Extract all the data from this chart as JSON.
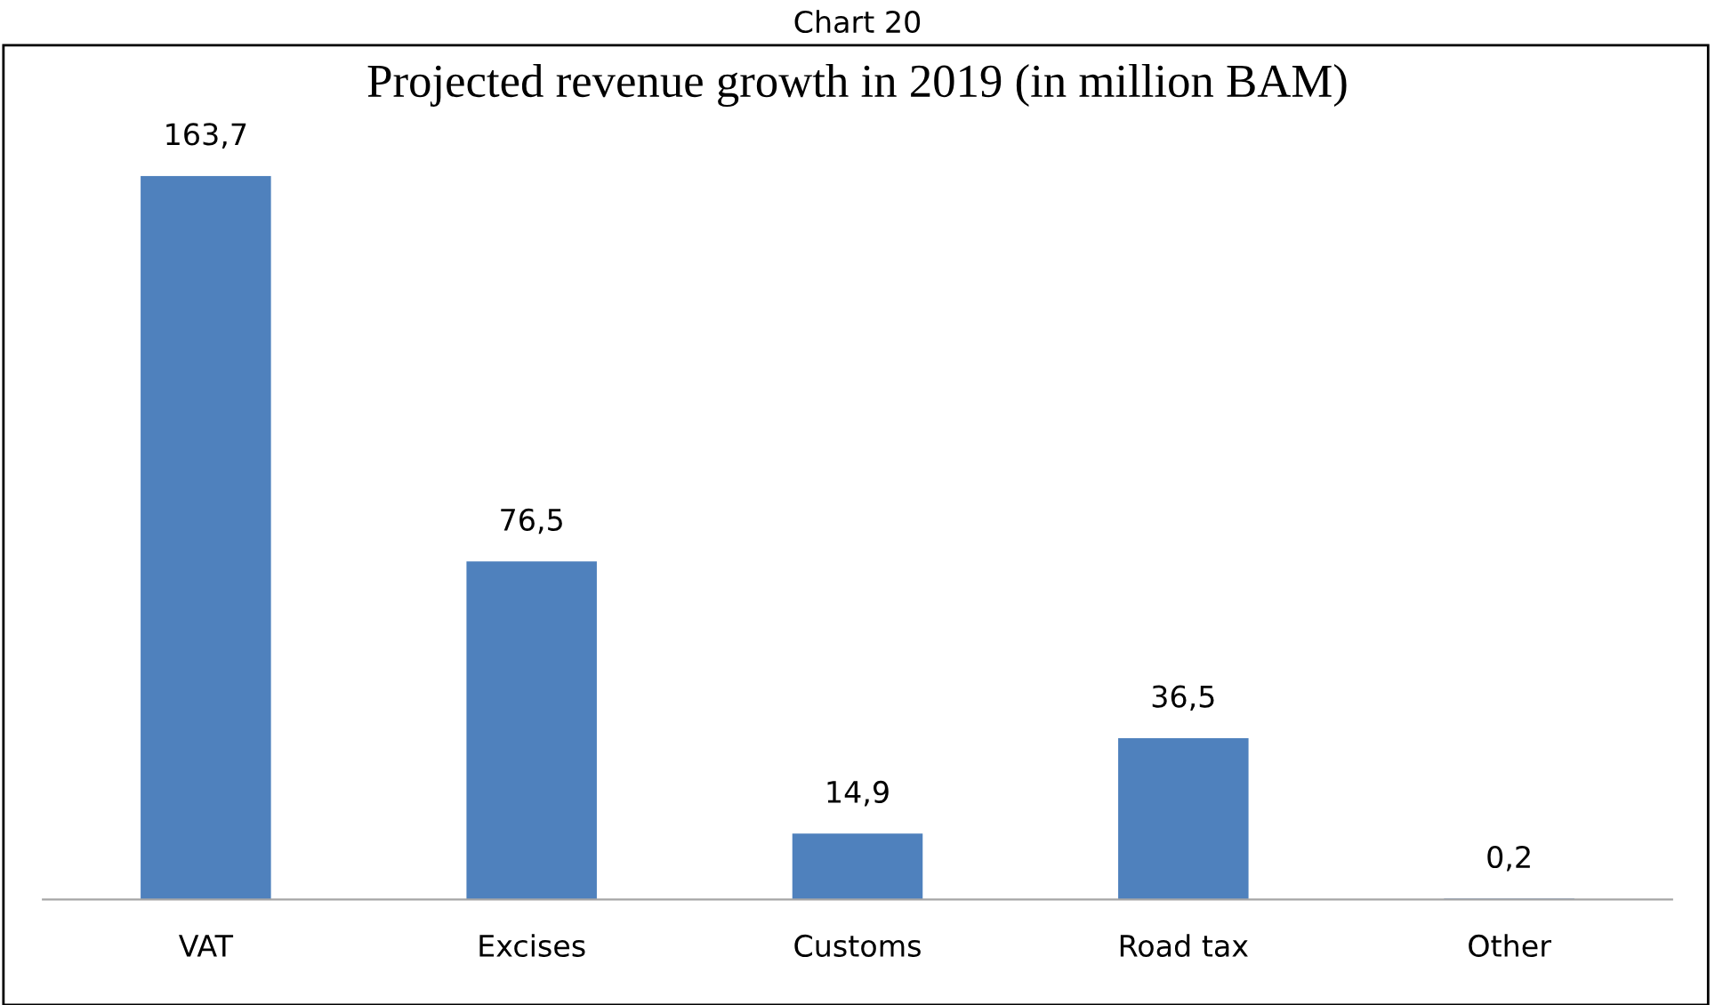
{
  "chart_data": {
    "type": "bar",
    "title": "Chart 20",
    "subtitle": "Projected revenue growth in 2019 (in million BAM)",
    "categories": [
      "VAT",
      "Excises",
      "Customs",
      "Road tax",
      "Other"
    ],
    "values": [
      163.7,
      76.5,
      14.9,
      36.5,
      0.2
    ],
    "value_labels": [
      "163,7",
      "76,5",
      "14,9",
      "36,5",
      "0,2"
    ],
    "color": "#4f81bd",
    "tick_labels": "x",
    "grid": false,
    "legend": false
  }
}
